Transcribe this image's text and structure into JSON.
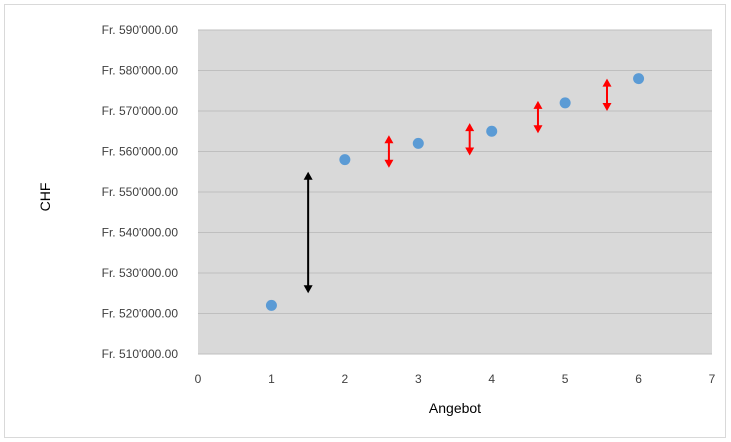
{
  "chart_data": {
    "type": "scatter",
    "title": "",
    "xlabel": "Angebot",
    "ylabel": "CHF",
    "xlim": [
      0,
      7
    ],
    "ylim": [
      510000,
      590000
    ],
    "x_ticks": [
      0,
      1,
      2,
      3,
      4,
      5,
      6,
      7
    ],
    "y_ticks": [
      510000,
      520000,
      530000,
      540000,
      550000,
      560000,
      570000,
      580000,
      590000
    ],
    "y_tick_labels": [
      "Fr. 510'000.00",
      "Fr. 520'000.00",
      "Fr. 530'000.00",
      "Fr. 540'000.00",
      "Fr. 550'000.00",
      "Fr. 560'000.00",
      "Fr. 570'000.00",
      "Fr. 580'000.00",
      "Fr. 590'000.00"
    ],
    "grid": "horizontal",
    "plot_background": "#d9d9d9",
    "series": [
      {
        "color": "#5b9bd5",
        "points": [
          {
            "x": 1,
            "y": 522000
          },
          {
            "x": 2,
            "y": 558000
          },
          {
            "x": 3,
            "y": 562000
          },
          {
            "x": 4,
            "y": 565000
          },
          {
            "x": 5,
            "y": 572000
          },
          {
            "x": 6,
            "y": 578000
          }
        ]
      }
    ],
    "annotations": [
      {
        "type": "double-arrow",
        "color": "#000000",
        "x": 1.5,
        "y_from": 555000,
        "y_to": 525000
      },
      {
        "type": "double-arrow",
        "color": "#ff0000",
        "x": 2.6,
        "y_from": 564000,
        "y_to": 556000
      },
      {
        "type": "double-arrow",
        "color": "#ff0000",
        "x": 3.7,
        "y_from": 567000,
        "y_to": 559000
      },
      {
        "type": "double-arrow",
        "color": "#ff0000",
        "x": 4.63,
        "y_from": 572500,
        "y_to": 564500
      },
      {
        "type": "double-arrow",
        "color": "#ff0000",
        "x": 5.57,
        "y_from": 578000,
        "y_to": 570000
      }
    ]
  }
}
